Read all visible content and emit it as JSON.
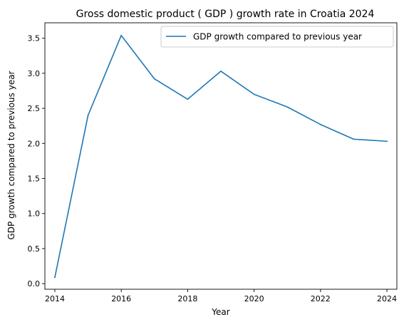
{
  "chart_data": {
    "type": "line",
    "title": "Gross domestic product ( GDP ) growth rate in Croatia 2024",
    "xlabel": "Year",
    "ylabel": "GDP growth compared to previous year",
    "x": [
      2014,
      2015,
      2016,
      2017,
      2018,
      2019,
      2020,
      2021,
      2022,
      2023,
      2024
    ],
    "series": [
      {
        "name": "GDP growth compared to previous year",
        "color": "#1f77b4",
        "values": [
          0.09,
          2.4,
          3.54,
          2.92,
          2.63,
          3.03,
          2.7,
          2.52,
          2.27,
          2.06,
          2.03
        ]
      }
    ],
    "xlim": [
      2013.7,
      2024.3
    ],
    "ylim": [
      -0.08,
      3.72
    ],
    "xticks": [
      2014,
      2016,
      2018,
      2020,
      2022,
      2024
    ],
    "xtick_labels": [
      "2014",
      "2016",
      "2018",
      "2020",
      "2022",
      "2024"
    ],
    "yticks": [
      0.0,
      0.5,
      1.0,
      1.5,
      2.0,
      2.5,
      3.0,
      3.5
    ],
    "ytick_labels": [
      "0.0",
      "0.5",
      "1.0",
      "1.5",
      "2.0",
      "2.5",
      "3.0",
      "3.5"
    ],
    "grid": false,
    "legend_position": "top-right"
  }
}
